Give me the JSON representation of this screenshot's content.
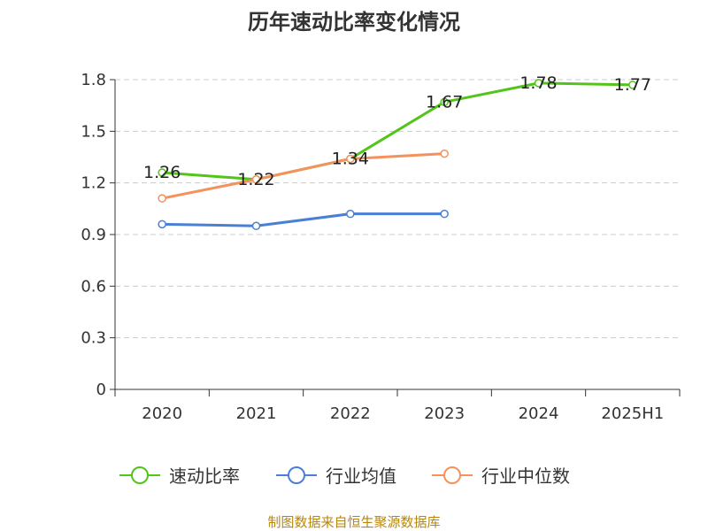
{
  "chart_data": {
    "type": "line",
    "title": "历年速动比率变化情况",
    "categories": [
      "2020",
      "2021",
      "2022",
      "2023",
      "2024",
      "2025H1"
    ],
    "ylim": [
      0,
      1.8
    ],
    "yticks": [
      "0",
      "0.3",
      "0.6",
      "0.9",
      "1.2",
      "1.5",
      "1.8"
    ],
    "grid": true,
    "legend_position": "bottom",
    "series": [
      {
        "name": "速动比率",
        "color": "#52c41a",
        "values": [
          1.26,
          1.22,
          1.34,
          1.67,
          1.78,
          1.77
        ],
        "labels": [
          "1.26",
          "1.22",
          "1.34",
          "1.67",
          "1.78",
          "1.77"
        ]
      },
      {
        "name": "行业均值",
        "color": "#4a7fd6",
        "values": [
          0.96,
          0.95,
          1.02,
          1.02,
          null,
          null
        ]
      },
      {
        "name": "行业中位数",
        "color": "#f4915c",
        "values": [
          1.11,
          1.22,
          1.34,
          1.37,
          null,
          null
        ]
      }
    ]
  },
  "source": {
    "text": "制图数据来自恒生聚源数据库",
    "color": "#b8860b"
  }
}
